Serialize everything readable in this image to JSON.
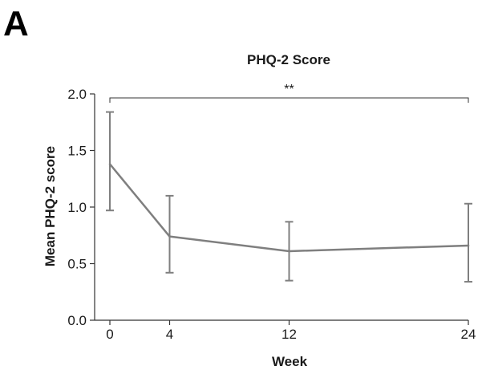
{
  "figure": {
    "panel_label": "A"
  },
  "chart_data": {
    "type": "line",
    "title": "PHQ-2 Score",
    "xlabel": "Week",
    "ylabel": "Mean PHQ-2 score",
    "x": [
      0,
      4,
      12,
      24
    ],
    "xticks": [
      "0",
      "4",
      "12",
      "24"
    ],
    "yticks": [
      "0.0",
      "0.5",
      "1.0",
      "1.5",
      "2.0"
    ],
    "ylim": [
      0,
      2.0
    ],
    "xlim": [
      0,
      24
    ],
    "grid": false,
    "series": [
      {
        "values": [
          1.38,
          0.74,
          0.61,
          0.66
        ],
        "error_low": [
          0.97,
          0.42,
          0.35,
          0.34
        ],
        "error_high": [
          1.84,
          1.1,
          0.87,
          1.03
        ],
        "color": "#7f7f7f"
      }
    ],
    "significance": {
      "label": "**",
      "from_x": 0,
      "to_x": 24
    }
  }
}
